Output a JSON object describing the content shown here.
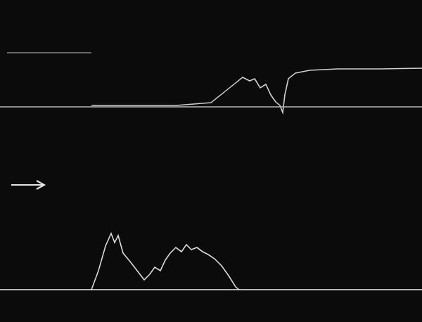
{
  "chart_data": {
    "type": "line",
    "xlim": [
      0,
      600
    ],
    "ylim": [
      0,
      458
    ],
    "grid": false,
    "tick_labels": false,
    "series": [
      {
        "color": "#8a8a8a",
        "x": [
          10,
          130
        ],
        "values": [
          383,
          383
        ]
      },
      {
        "color": "#b8b8b8",
        "x": [
          0,
          600
        ],
        "values": [
          306,
          306
        ]
      },
      {
        "color": "#d0d0d0",
        "x": [
          130,
          160,
          200,
          250,
          300,
          320,
          335,
          345,
          355,
          362,
          370,
          378,
          385,
          392,
          398,
          402,
          405,
          410,
          420,
          440,
          480,
          540,
          600
        ],
        "values": [
          308,
          308,
          308,
          308,
          312,
          328,
          340,
          348,
          343,
          346,
          333,
          338,
          323,
          313,
          308,
          298,
          323,
          346,
          354,
          358,
          360,
          360,
          361
        ]
      },
      {
        "color": "#f2f2f2",
        "x": [
          0,
          600
        ],
        "values": [
          46,
          46
        ]
      },
      {
        "color": "#dadada",
        "x": [
          130,
          140,
          150,
          158,
          163,
          168,
          175,
          185,
          195,
          205,
          213,
          220,
          228,
          235,
          242,
          250,
          258,
          265,
          272,
          280,
          288,
          296,
          305,
          315,
          325,
          335,
          340
        ],
        "values": [
          46,
          73,
          108,
          126,
          113,
          123,
          98,
          86,
          73,
          60,
          68,
          78,
          73,
          88,
          98,
          106,
          100,
          110,
          103,
          106,
          100,
          96,
          90,
          80,
          66,
          50,
          46
        ]
      }
    ]
  }
}
